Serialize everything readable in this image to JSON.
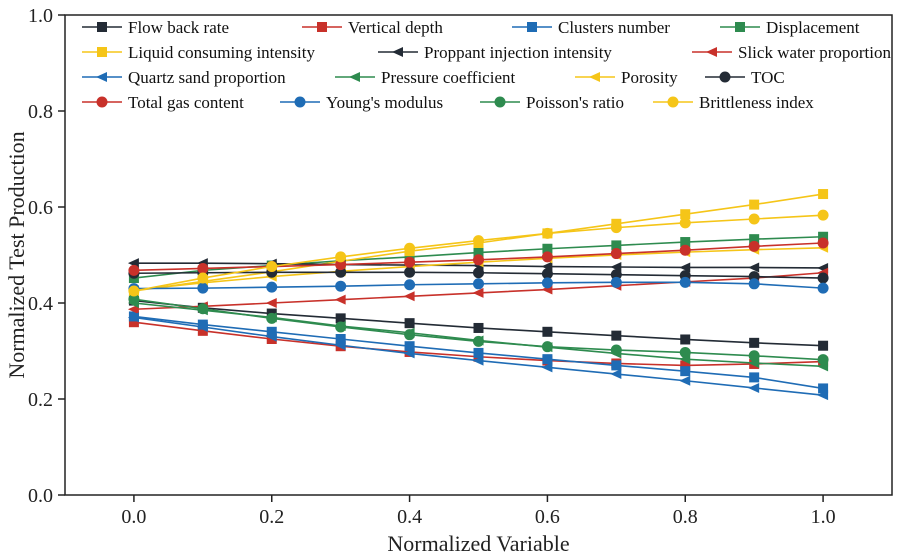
{
  "chart_data": {
    "type": "line",
    "title": "",
    "xlabel": "Normalized Variable",
    "ylabel": "Normalized Test Production",
    "xlim": [
      -0.1,
      1.1
    ],
    "ylim": [
      0.0,
      1.0
    ],
    "xticks": [
      0.0,
      0.2,
      0.4,
      0.6,
      0.8,
      1.0
    ],
    "xtick_labels": [
      "0.0",
      "0.2",
      "0.4",
      "0.6",
      "0.8",
      "1.0"
    ],
    "yticks": [
      0.0,
      0.2,
      0.4,
      0.6,
      0.8,
      1.0
    ],
    "ytick_labels": [
      "0.0",
      "0.2",
      "0.4",
      "0.6",
      "0.8",
      "1.0"
    ],
    "legend_position": "top",
    "x": [
      0.0,
      0.1,
      0.2,
      0.3,
      0.4,
      0.5,
      0.6,
      0.7,
      0.8,
      0.9,
      1.0
    ],
    "series": [
      {
        "name": "Flow back rate",
        "color": "#232b35",
        "marker": "square",
        "values": [
          0.405,
          0.39,
          0.378,
          0.368,
          0.358,
          0.348,
          0.34,
          0.332,
          0.324,
          0.317,
          0.311
        ]
      },
      {
        "name": "Vertical depth",
        "color": "#c8312a",
        "marker": "square",
        "values": [
          0.36,
          0.342,
          0.325,
          0.31,
          0.298,
          0.288,
          0.28,
          0.274,
          0.27,
          0.273,
          0.278
        ]
      },
      {
        "name": "Clusters number",
        "color": "#1f6cb5",
        "marker": "square",
        "values": [
          0.372,
          0.355,
          0.34,
          0.325,
          0.31,
          0.296,
          0.283,
          0.27,
          0.258,
          0.245,
          0.222
        ]
      },
      {
        "name": "Displacement",
        "color": "#2e8b4f",
        "marker": "square",
        "values": [
          0.452,
          0.468,
          0.478,
          0.488,
          0.496,
          0.505,
          0.513,
          0.52,
          0.527,
          0.533,
          0.538
        ]
      },
      {
        "name": "Liquid consuming intensity",
        "color": "#f5c518",
        "marker": "square",
        "values": [
          0.425,
          0.445,
          0.465,
          0.487,
          0.508,
          0.525,
          0.545,
          0.565,
          0.585,
          0.605,
          0.627
        ]
      },
      {
        "name": "Proppant injection intensity",
        "color": "#232b35",
        "marker": "triangle-left",
        "values": [
          0.483,
          0.483,
          0.482,
          0.48,
          0.479,
          0.478,
          0.476,
          0.475,
          0.474,
          0.474,
          0.473
        ]
      },
      {
        "name": "Slick water proportion",
        "color": "#c8312a",
        "marker": "triangle-left",
        "values": [
          0.387,
          0.393,
          0.4,
          0.407,
          0.414,
          0.421,
          0.428,
          0.436,
          0.444,
          0.452,
          0.463
        ]
      },
      {
        "name": "Quartz sand proportion",
        "color": "#1f6cb5",
        "marker": "triangle-left",
        "values": [
          0.37,
          0.35,
          0.33,
          0.312,
          0.295,
          0.28,
          0.266,
          0.252,
          0.238,
          0.223,
          0.208
        ]
      },
      {
        "name": "Pressure coefficient",
        "color": "#2e8b4f",
        "marker": "triangle-left",
        "values": [
          0.4,
          0.385,
          0.37,
          0.352,
          0.338,
          0.322,
          0.308,
          0.295,
          0.283,
          0.275,
          0.268
        ]
      },
      {
        "name": "Porosity",
        "color": "#f5c518",
        "marker": "triangle-left",
        "values": [
          0.427,
          0.442,
          0.455,
          0.466,
          0.476,
          0.485,
          0.493,
          0.5,
          0.506,
          0.511,
          0.515
        ]
      },
      {
        "name": "TOC",
        "color": "#232b35",
        "marker": "circle",
        "values": [
          0.462,
          0.463,
          0.464,
          0.464,
          0.464,
          0.463,
          0.461,
          0.459,
          0.457,
          0.455,
          0.452
        ]
      },
      {
        "name": "Total gas content",
        "color": "#c8312a",
        "marker": "circle",
        "values": [
          0.468,
          0.472,
          0.476,
          0.48,
          0.485,
          0.49,
          0.496,
          0.503,
          0.51,
          0.518,
          0.525
        ]
      },
      {
        "name": "Young's modulus",
        "color": "#1f6cb5",
        "marker": "circle",
        "values": [
          0.43,
          0.431,
          0.433,
          0.435,
          0.438,
          0.44,
          0.442,
          0.443,
          0.443,
          0.44,
          0.431
        ]
      },
      {
        "name": "Poisson's ratio",
        "color": "#2e8b4f",
        "marker": "circle",
        "values": [
          0.408,
          0.388,
          0.368,
          0.35,
          0.334,
          0.32,
          0.309,
          0.302,
          0.297,
          0.29,
          0.282
        ]
      },
      {
        "name": "Brittleness index",
        "color": "#f5c518",
        "marker": "circle",
        "values": [
          0.425,
          0.452,
          0.476,
          0.496,
          0.514,
          0.53,
          0.545,
          0.557,
          0.567,
          0.575,
          0.583
        ]
      }
    ]
  }
}
